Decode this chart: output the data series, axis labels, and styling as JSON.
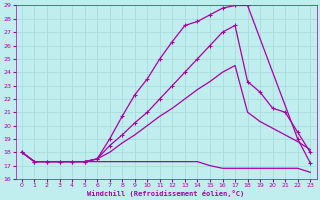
{
  "xlabel": "Windchill (Refroidissement éolien,°C)",
  "bg_color": "#c0eeee",
  "grid_color": "#aadddd",
  "line_color": "#aa00aa",
  "xlim": [
    -0.5,
    23.5
  ],
  "ylim": [
    16,
    29
  ],
  "xticks": [
    0,
    1,
    2,
    3,
    4,
    5,
    6,
    7,
    8,
    9,
    10,
    11,
    12,
    13,
    14,
    15,
    16,
    17,
    18,
    19,
    20,
    21,
    22,
    23
  ],
  "yticks": [
    16,
    17,
    18,
    19,
    20,
    21,
    22,
    23,
    24,
    25,
    26,
    27,
    28,
    29
  ],
  "line1_x": [
    0,
    1,
    2,
    3,
    4,
    5,
    6,
    7,
    8,
    9,
    10,
    11,
    12,
    13,
    14,
    15,
    16,
    17,
    18,
    22,
    23
  ],
  "line1_y": [
    18.0,
    17.3,
    17.3,
    17.3,
    17.3,
    17.3,
    17.5,
    19.0,
    20.7,
    22.3,
    23.5,
    25.0,
    26.3,
    27.5,
    27.8,
    28.3,
    28.8,
    29.0,
    29.0,
    19.0,
    17.2
  ],
  "line2_x": [
    0,
    1,
    2,
    3,
    4,
    5,
    6,
    7,
    8,
    9,
    10,
    11,
    12,
    13,
    14,
    15,
    16,
    17,
    18,
    19,
    20,
    21,
    22,
    23
  ],
  "line2_y": [
    18.0,
    17.3,
    17.3,
    17.3,
    17.3,
    17.3,
    17.5,
    18.5,
    19.3,
    20.2,
    21.0,
    22.0,
    23.0,
    24.0,
    25.0,
    26.0,
    27.0,
    27.5,
    23.3,
    22.5,
    21.3,
    21.0,
    19.5,
    18.0
  ],
  "line3_x": [
    0,
    1,
    2,
    3,
    4,
    5,
    6,
    7,
    8,
    9,
    10,
    11,
    12,
    13,
    14,
    15,
    16,
    17,
    18,
    19,
    20,
    21,
    22,
    23
  ],
  "line3_y": [
    18.0,
    17.3,
    17.3,
    17.3,
    17.3,
    17.3,
    17.5,
    18.0,
    18.7,
    19.3,
    20.0,
    20.7,
    21.3,
    22.0,
    22.7,
    23.3,
    24.0,
    24.5,
    21.0,
    20.3,
    19.8,
    19.3,
    18.8,
    18.2
  ],
  "line4_x": [
    0,
    1,
    2,
    3,
    4,
    5,
    6,
    7,
    8,
    9,
    10,
    11,
    12,
    13,
    14,
    15,
    16,
    17,
    18,
    19,
    20,
    21,
    22,
    23
  ],
  "line4_y": [
    18.0,
    17.3,
    17.3,
    17.3,
    17.3,
    17.3,
    17.3,
    17.3,
    17.3,
    17.3,
    17.3,
    17.3,
    17.3,
    17.3,
    17.3,
    17.0,
    16.8,
    16.8,
    16.8,
    16.8,
    16.8,
    16.8,
    16.8,
    16.5
  ]
}
